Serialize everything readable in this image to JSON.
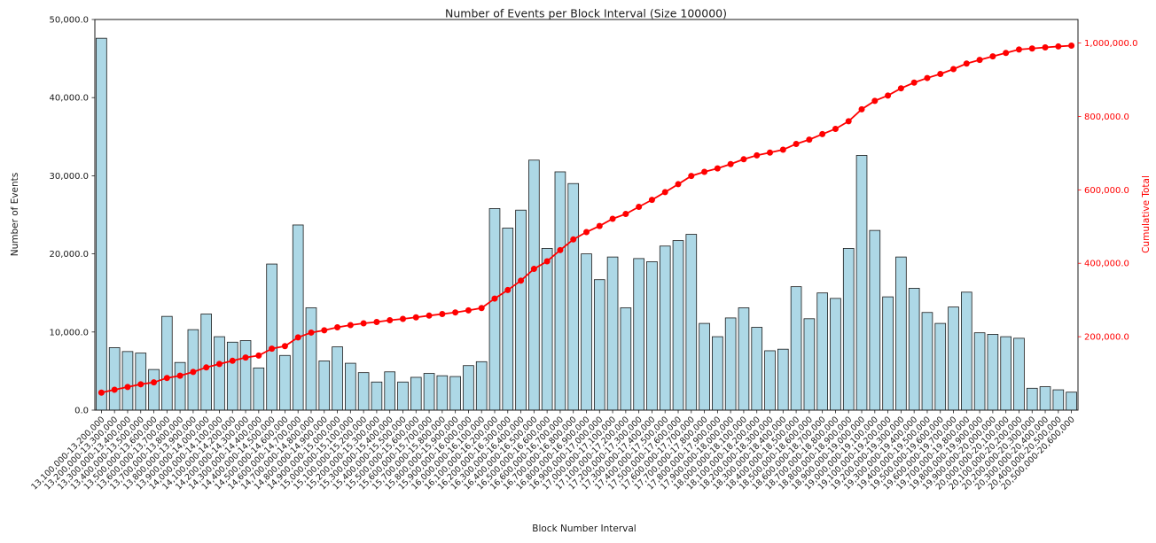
{
  "figure": {
    "background": "#FFFFFF"
  },
  "chart_data": {
    "type": "bar",
    "combo": "bar + cumulative line, dual y-axis",
    "title": "Number of Events per Block Interval (Size 100000)",
    "xlabel": "Block Number Interval",
    "ylabel": "Number of Events",
    "ylabel_right": "Cumulative Total",
    "grid": false,
    "legend_position": "none",
    "colors": {
      "bar_fill": "#ADD8E6",
      "bar_edge": "#1A1A1A",
      "line": "#FF0000",
      "axis_text": "#1A1A1A"
    },
    "y_axis_left": {
      "lim": [
        0,
        50000
      ],
      "tick_values": [
        0,
        10000,
        20000,
        30000,
        40000,
        50000
      ],
      "tick_labels": [
        "0.0",
        "10,000.0",
        "20,000.0",
        "30,000.0",
        "40,000.0",
        "50,000.0"
      ]
    },
    "y_axis_right": {
      "lim": [
        0,
        1064000
      ],
      "tick_values": [
        200000,
        400000,
        600000,
        800000,
        1000000
      ],
      "tick_labels": [
        "200,000.0",
        "400,000.0",
        "600,000.0",
        "800,000.0",
        "1,000,000.0"
      ]
    },
    "categories": [
      "13,100,000-13,200,000",
      "13,200,000-13,300,000",
      "13,300,000-13,400,000",
      "13,400,000-13,500,000",
      "13,500,000-13,600,000",
      "13,600,000-13,700,000",
      "13,700,000-13,800,000",
      "13,800,000-13,900,000",
      "13,900,000-14,000,000",
      "14,000,000-14,100,000",
      "14,100,000-14,200,000",
      "14,200,000-14,300,000",
      "14,300,000-14,400,000",
      "14,400,000-14,500,000",
      "14,500,000-14,600,000",
      "14,600,000-14,700,000",
      "14,700,000-14,800,000",
      "14,800,000-14,900,000",
      "14,900,000-15,000,000",
      "15,000,000-15,100,000",
      "15,100,000-15,200,000",
      "15,200,000-15,300,000",
      "15,300,000-15,400,000",
      "15,400,000-15,500,000",
      "15,500,000-15,600,000",
      "15,600,000-15,700,000",
      "15,700,000-15,800,000",
      "15,800,000-15,900,000",
      "15,900,000-16,000,000",
      "16,000,000-16,100,000",
      "16,100,000-16,200,000",
      "16,200,000-16,300,000",
      "16,300,000-16,400,000",
      "16,400,000-16,500,000",
      "16,500,000-16,600,000",
      "16,600,000-16,700,000",
      "16,700,000-16,800,000",
      "16,800,000-16,900,000",
      "16,900,000-17,000,000",
      "17,000,000-17,100,000",
      "17,100,000-17,200,000",
      "17,200,000-17,300,000",
      "17,300,000-17,400,000",
      "17,400,000-17,500,000",
      "17,500,000-17,600,000",
      "17,600,000-17,700,000",
      "17,700,000-17,800,000",
      "17,800,000-17,900,000",
      "17,900,000-18,000,000",
      "18,000,000-18,100,000",
      "18,100,000-18,200,000",
      "18,200,000-18,300,000",
      "18,300,000-18,400,000",
      "18,400,000-18,500,000",
      "18,500,000-18,600,000",
      "18,600,000-18,700,000",
      "18,700,000-18,800,000",
      "18,800,000-18,900,000",
      "18,900,000-19,000,000",
      "19,000,000-19,100,000",
      "19,100,000-19,200,000",
      "19,200,000-19,300,000",
      "19,300,000-19,400,000",
      "19,400,000-19,500,000",
      "19,500,000-19,600,000",
      "19,600,000-19,700,000",
      "19,700,000-19,800,000",
      "19,800,000-19,900,000",
      "19,900,000-20,000,000",
      "20,000,000-20,100,000",
      "20,100,000-20,200,000",
      "20,200,000-20,300,000",
      "20,300,000-20,400,000",
      "20,400,000-20,500,000",
      "20,500,000-20,600,000"
    ],
    "series": [
      {
        "name": "Number of Events",
        "type": "bar",
        "axis": "left",
        "values": [
          47600,
          8000,
          7500,
          7300,
          5200,
          12000,
          6100,
          10300,
          12300,
          9400,
          8700,
          8900,
          5400,
          18700,
          7000,
          23700,
          13100,
          6300,
          8100,
          6000,
          4800,
          3600,
          4900,
          3600,
          4200,
          4700,
          4400,
          4300,
          5700,
          6200,
          25800,
          23300,
          25600,
          32000,
          20700,
          30500,
          29000,
          20000,
          16700,
          19600,
          13100,
          19400,
          19000,
          21000,
          21700,
          22500,
          11100,
          9400,
          11800,
          13100,
          10600,
          7600,
          7800,
          15800,
          11700,
          15000,
          14300,
          20700,
          32600,
          23000,
          14500,
          19600,
          15600,
          12500,
          11100,
          13200,
          15100,
          9900,
          9700,
          9400,
          9200,
          2800,
          3000,
          2600,
          2300
        ]
      },
      {
        "name": "Cumulative Total",
        "type": "line",
        "axis": "right",
        "marker": "circle",
        "values": [
          47600,
          55600,
          63100,
          70400,
          75600,
          87600,
          93700,
          104000,
          116300,
          125700,
          134400,
          143300,
          148700,
          167400,
          174400,
          198100,
          211200,
          217500,
          225600,
          231600,
          236400,
          240000,
          244900,
          248500,
          252700,
          257400,
          261800,
          266100,
          271800,
          278000,
          303800,
          327100,
          352700,
          384700,
          405400,
          435900,
          464900,
          484900,
          501600,
          521200,
          534300,
          553700,
          572700,
          593700,
          615400,
          637900,
          649000,
          658400,
          670200,
          683300,
          693900,
          701500,
          709300,
          725100,
          736800,
          751800,
          766100,
          786800,
          819400,
          842400,
          856900,
          876500,
          892100,
          904600,
          915700,
          928900,
          944000,
          953900,
          963600,
          973000,
          982200,
          985000,
          988000,
          990600,
          992900
        ]
      }
    ]
  }
}
